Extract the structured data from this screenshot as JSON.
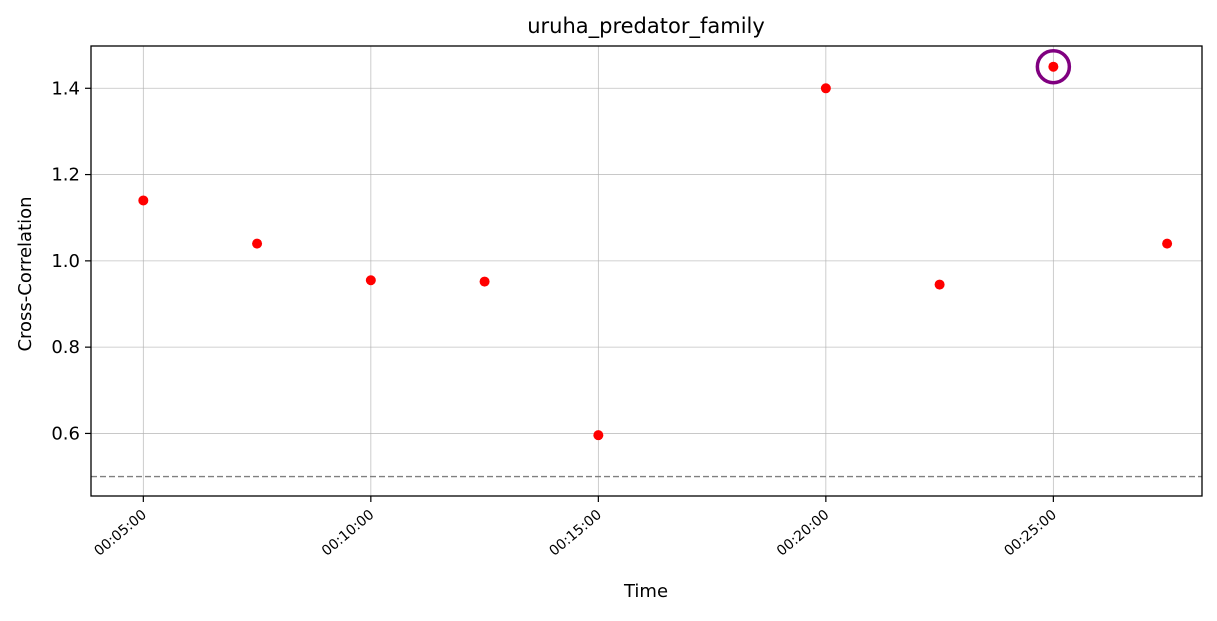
{
  "chart_data": {
    "type": "scatter",
    "title": "uruha_predator_family",
    "xlabel": "Time",
    "ylabel": "Cross-Correlation",
    "x_tick_labels": [
      "00:05:00",
      "00:10:00",
      "00:15:00",
      "00:20:00",
      "00:25:00"
    ],
    "x_tick_values": [
      "00:05:00",
      "00:10:00",
      "00:15:00",
      "00:20:00",
      "00:25:00"
    ],
    "y_ticks": [
      0.6,
      0.8,
      1.0,
      1.2,
      1.4
    ],
    "y_tick_labels": [
      "0.6",
      "0.8",
      "1.0",
      "1.2",
      "1.4"
    ],
    "xlim": [
      "00:03:51",
      "00:28:16"
    ],
    "ylim": [
      0.455,
      1.498
    ],
    "grid": true,
    "series": [
      {
        "color": "#ff0000",
        "points": [
          {
            "x": "00:05:00",
            "y": 1.14
          },
          {
            "x": "00:07:30",
            "y": 1.04
          },
          {
            "x": "00:10:00",
            "y": 0.955
          },
          {
            "x": "00:12:30",
            "y": 0.952
          },
          {
            "x": "00:15:00",
            "y": 0.596
          },
          {
            "x": "00:20:00",
            "y": 1.4
          },
          {
            "x": "00:22:30",
            "y": 0.945
          },
          {
            "x": "00:25:00",
            "y": 1.45
          },
          {
            "x": "00:27:30",
            "y": 1.04
          }
        ]
      }
    ],
    "threshold": {
      "y": 0.5,
      "style": "dashed",
      "color": "#808080"
    },
    "highlight": {
      "x": "00:25:00",
      "y": 1.45,
      "color": "#800080"
    }
  }
}
